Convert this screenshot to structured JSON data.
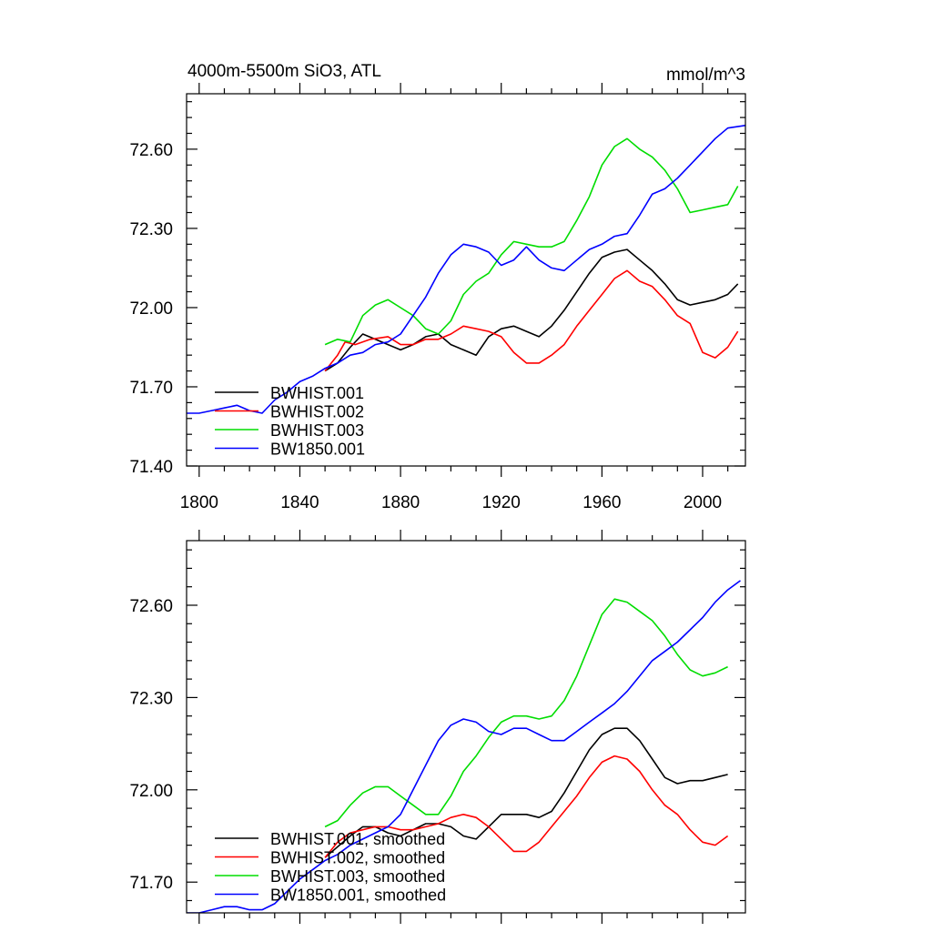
{
  "chart_data": [
    {
      "type": "line",
      "title": "4000m-5500m SiO3, ATL",
      "units": "mmol/m^3",
      "xlim": [
        1795,
        2017
      ],
      "ylim": [
        71.4,
        72.81
      ],
      "x_ticks": [
        1800,
        1840,
        1880,
        1920,
        1960,
        2000
      ],
      "x_tick_labels": [
        "1800",
        "1840",
        "1880",
        "1920",
        "1960",
        "2000"
      ],
      "y_ticks": [
        71.4,
        71.7,
        72.0,
        72.3,
        72.6
      ],
      "y_tick_labels": [
        "71.40",
        "71.70",
        "72.00",
        "72.30",
        "72.60"
      ],
      "legend_position": "lower-left",
      "series": [
        {
          "name": "BWHIST.001",
          "color": "#000000",
          "x": [
            1850,
            1855,
            1860,
            1865,
            1870,
            1875,
            1880,
            1885,
            1890,
            1895,
            1900,
            1905,
            1910,
            1915,
            1920,
            1925,
            1930,
            1935,
            1940,
            1945,
            1950,
            1955,
            1960,
            1965,
            1970,
            1975,
            1980,
            1985,
            1990,
            1995,
            2000,
            2005,
            2010,
            2014
          ],
          "y": [
            71.76,
            71.79,
            71.85,
            71.9,
            71.88,
            71.86,
            71.84,
            71.86,
            71.89,
            71.9,
            71.86,
            71.84,
            71.82,
            71.89,
            71.92,
            71.93,
            71.91,
            71.89,
            71.93,
            71.99,
            72.06,
            72.13,
            72.19,
            72.21,
            72.22,
            72.18,
            72.14,
            72.09,
            72.03,
            72.01,
            72.02,
            72.03,
            72.05,
            72.09
          ]
        },
        {
          "name": "BWHIST.002",
          "color": "#ff0000",
          "x": [
            1850,
            1855,
            1858,
            1862,
            1868,
            1875,
            1880,
            1885,
            1890,
            1895,
            1900,
            1905,
            1910,
            1915,
            1920,
            1925,
            1930,
            1935,
            1940,
            1945,
            1950,
            1955,
            1960,
            1965,
            1970,
            1975,
            1980,
            1985,
            1990,
            1995,
            2000,
            2005,
            2010,
            2014
          ],
          "y": [
            71.76,
            71.82,
            71.87,
            71.86,
            71.88,
            71.89,
            71.86,
            71.86,
            71.88,
            71.88,
            71.9,
            71.93,
            71.92,
            71.91,
            71.89,
            71.83,
            71.79,
            71.79,
            71.82,
            71.86,
            71.93,
            71.99,
            72.05,
            72.11,
            72.14,
            72.1,
            72.08,
            72.03,
            71.97,
            71.94,
            71.83,
            71.81,
            71.85,
            71.91
          ]
        },
        {
          "name": "BWHIST.003",
          "color": "#00dd00",
          "x": [
            1850,
            1855,
            1860,
            1865,
            1870,
            1875,
            1880,
            1885,
            1890,
            1895,
            1900,
            1905,
            1910,
            1915,
            1920,
            1925,
            1930,
            1935,
            1940,
            1945,
            1950,
            1955,
            1960,
            1965,
            1970,
            1975,
            1980,
            1985,
            1990,
            1995,
            2000,
            2005,
            2010,
            2014
          ],
          "y": [
            71.86,
            71.88,
            71.87,
            71.97,
            72.01,
            72.03,
            72.0,
            71.97,
            71.92,
            71.9,
            71.95,
            72.05,
            72.1,
            72.13,
            72.2,
            72.25,
            72.24,
            72.23,
            72.23,
            72.25,
            72.33,
            72.42,
            72.54,
            72.61,
            72.64,
            72.6,
            72.57,
            72.52,
            72.45,
            72.36,
            72.37,
            72.38,
            72.39,
            72.46
          ]
        },
        {
          "name": "BW1850.001",
          "color": "#0000ff",
          "x": [
            1795,
            1800,
            1805,
            1810,
            1815,
            1820,
            1825,
            1830,
            1835,
            1840,
            1845,
            1850,
            1855,
            1860,
            1865,
            1870,
            1875,
            1880,
            1885,
            1890,
            1895,
            1900,
            1905,
            1910,
            1915,
            1920,
            1925,
            1930,
            1935,
            1940,
            1945,
            1950,
            1955,
            1960,
            1965,
            1970,
            1975,
            1980,
            1985,
            1990,
            1995,
            2000,
            2005,
            2010,
            2017
          ],
          "y": [
            71.6,
            71.6,
            71.61,
            71.62,
            71.63,
            71.61,
            71.6,
            71.65,
            71.68,
            71.72,
            71.74,
            71.77,
            71.79,
            71.82,
            71.83,
            71.86,
            71.87,
            71.9,
            71.97,
            72.04,
            72.13,
            72.2,
            72.24,
            72.23,
            72.21,
            72.16,
            72.18,
            72.23,
            72.18,
            72.15,
            72.14,
            72.18,
            72.22,
            72.24,
            72.27,
            72.28,
            72.35,
            72.43,
            72.45,
            72.49,
            72.54,
            72.59,
            72.64,
            72.68,
            72.69
          ]
        }
      ]
    },
    {
      "type": "line",
      "title": "",
      "xlim": [
        1795,
        2017
      ],
      "ylim": [
        71.6,
        72.81
      ],
      "x_ticks": [
        1800,
        1840,
        1880,
        1920,
        1960,
        2000
      ],
      "y_ticks": [
        71.7,
        72.0,
        72.3,
        72.6
      ],
      "y_tick_labels": [
        "71.70",
        "72.00",
        "72.30",
        "72.60"
      ],
      "legend_position": "lower-left",
      "series": [
        {
          "name": "BWHIST.001, smoothed",
          "color": "#000000",
          "x": [
            1850,
            1860,
            1865,
            1870,
            1875,
            1880,
            1885,
            1890,
            1895,
            1900,
            1905,
            1910,
            1915,
            1920,
            1925,
            1930,
            1935,
            1940,
            1945,
            1950,
            1955,
            1960,
            1965,
            1970,
            1975,
            1980,
            1985,
            1990,
            1995,
            2000,
            2005,
            2010
          ],
          "y": [
            71.78,
            71.85,
            71.88,
            71.88,
            71.86,
            71.85,
            71.87,
            71.89,
            71.89,
            71.88,
            71.85,
            71.84,
            71.88,
            71.92,
            71.92,
            71.92,
            71.91,
            71.93,
            71.99,
            72.06,
            72.13,
            72.18,
            72.2,
            72.2,
            72.16,
            72.1,
            72.04,
            72.02,
            72.03,
            72.03,
            72.04,
            72.05
          ]
        },
        {
          "name": "BWHIST.002, smoothed",
          "color": "#ff0000",
          "x": [
            1850,
            1855,
            1860,
            1865,
            1870,
            1875,
            1880,
            1885,
            1890,
            1895,
            1900,
            1905,
            1910,
            1915,
            1920,
            1925,
            1930,
            1935,
            1940,
            1945,
            1950,
            1955,
            1960,
            1965,
            1970,
            1975,
            1980,
            1985,
            1990,
            1995,
            2000,
            2005,
            2010
          ],
          "y": [
            71.78,
            71.83,
            71.86,
            71.87,
            71.88,
            71.88,
            71.87,
            71.87,
            71.88,
            71.89,
            71.91,
            71.92,
            71.91,
            71.88,
            71.84,
            71.8,
            71.8,
            71.83,
            71.88,
            71.93,
            71.98,
            72.04,
            72.09,
            72.11,
            72.1,
            72.06,
            72.0,
            71.95,
            71.92,
            71.87,
            71.83,
            71.82,
            71.85
          ]
        },
        {
          "name": "BWHIST.003, smoothed",
          "color": "#00dd00",
          "x": [
            1850,
            1855,
            1860,
            1865,
            1870,
            1875,
            1880,
            1885,
            1890,
            1895,
            1900,
            1905,
            1910,
            1915,
            1920,
            1925,
            1930,
            1935,
            1940,
            1945,
            1950,
            1955,
            1960,
            1965,
            1970,
            1975,
            1980,
            1985,
            1990,
            1995,
            2000,
            2005,
            2010
          ],
          "y": [
            71.88,
            71.9,
            71.95,
            71.99,
            72.01,
            72.01,
            71.98,
            71.95,
            71.92,
            71.92,
            71.98,
            72.06,
            72.11,
            72.17,
            72.22,
            72.24,
            72.24,
            72.23,
            72.24,
            72.29,
            72.37,
            72.47,
            72.57,
            72.62,
            72.61,
            72.58,
            72.55,
            72.5,
            72.44,
            72.39,
            72.37,
            72.38,
            72.4
          ]
        },
        {
          "name": "BW1850.001, smoothed",
          "color": "#0000ff",
          "x": [
            1795,
            1800,
            1805,
            1810,
            1815,
            1820,
            1825,
            1830,
            1835,
            1840,
            1845,
            1850,
            1855,
            1860,
            1865,
            1870,
            1875,
            1880,
            1885,
            1890,
            1895,
            1900,
            1905,
            1910,
            1915,
            1920,
            1925,
            1930,
            1935,
            1940,
            1945,
            1950,
            1955,
            1960,
            1965,
            1970,
            1975,
            1980,
            1985,
            1990,
            1995,
            2000,
            2005,
            2010,
            2015
          ],
          "y": [
            71.6,
            71.6,
            71.61,
            71.62,
            71.62,
            71.61,
            71.61,
            71.63,
            71.67,
            71.71,
            71.74,
            71.77,
            71.79,
            71.82,
            71.84,
            71.86,
            71.88,
            71.92,
            72.0,
            72.08,
            72.16,
            72.21,
            72.23,
            72.22,
            72.19,
            72.18,
            72.2,
            72.2,
            72.18,
            72.16,
            72.16,
            72.19,
            72.22,
            72.25,
            72.28,
            72.32,
            72.37,
            72.42,
            72.45,
            72.48,
            72.52,
            72.56,
            72.61,
            72.65,
            72.68
          ]
        }
      ]
    }
  ]
}
